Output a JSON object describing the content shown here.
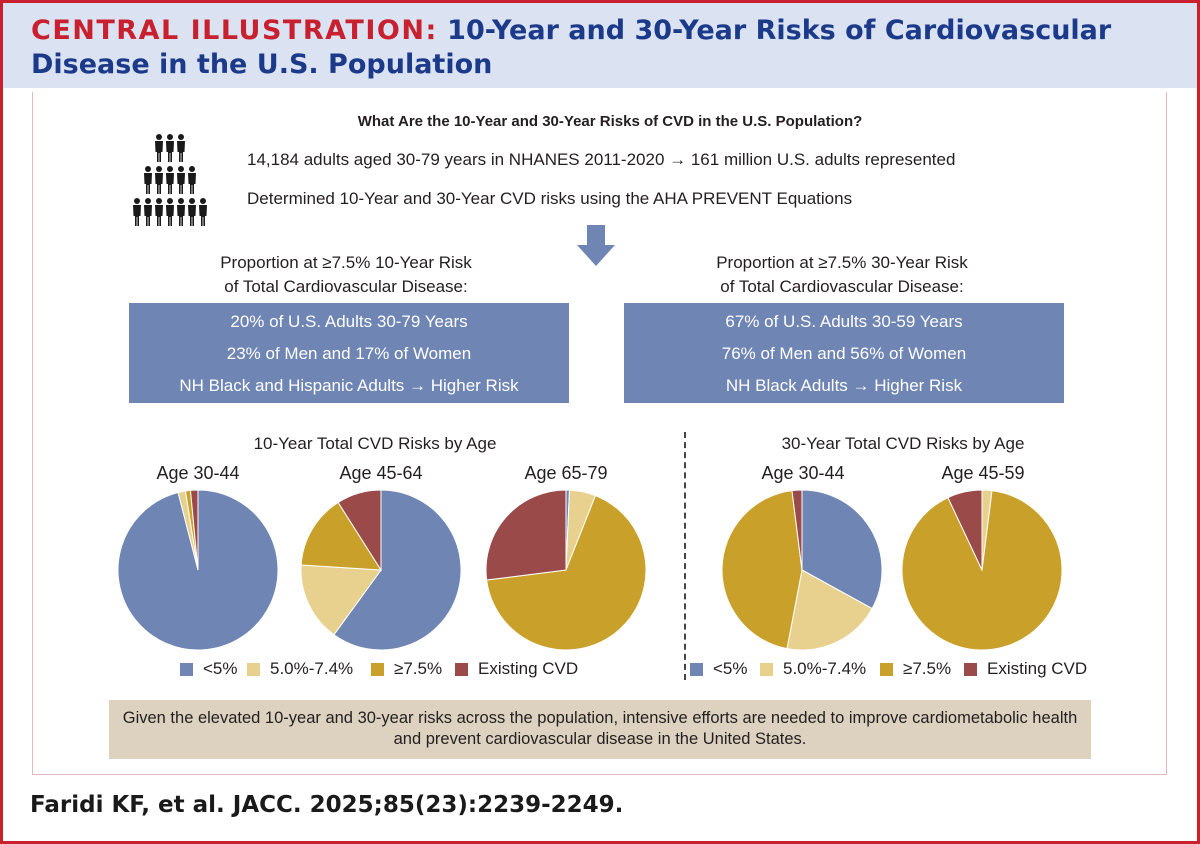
{
  "header": {
    "lead": "CENTRAL ILLUSTRATION:",
    "title": "10-Year and 30-Year Risks of Cardiovascular Disease in the U.S. Population"
  },
  "question": "What Are the 10-Year and 30-Year Risks of CVD in the U.S. Population?",
  "facts": [
    "14,184 adults aged 30-79 years in NHANES 2011-2020 → 161 million U.S. adults represented",
    "Determined 10-Year and 30-Year CVD risks using the AHA PREVENT Equations"
  ],
  "left": {
    "prop_title_line1": "Proportion at ≥7.5% 10-Year Risk",
    "prop_title_line2": "of Total Cardiovascular Disease:",
    "box": [
      "20% of U.S. Adults 30-79 Years",
      "23% of Men and 17% of Women",
      "NH Black and Hispanic Adults → Higher Risk"
    ]
  },
  "right": {
    "prop_title_line1": "Proportion at ≥7.5% 30-Year Risk",
    "prop_title_line2": "of Total Cardiovascular Disease:",
    "box": [
      "67% of U.S. Adults 30-59 Years",
      "76% of Men and 56% of Women",
      "NH Black Adults → Higher Risk"
    ]
  },
  "legend": [
    "<5%",
    "5.0%-7.4%",
    "≥7.5%",
    "Existing CVD"
  ],
  "colors": {
    "lt5": "#6f85b4",
    "mid": "#e8d08f",
    "ge75": "#c9a02a",
    "cvd": "#9b4a4a",
    "accent": "#c8202f",
    "title": "#1b3a8a",
    "box": "#6f85b4",
    "conclusion_bg": "#dcd2bf"
  },
  "chart_data": [
    {
      "type": "pie",
      "title": "10-Year Total CVD Risks by Age",
      "categories": [
        "<5%",
        "5.0%-7.4%",
        "≥7.5%",
        "Existing CVD"
      ],
      "pies": [
        {
          "name": "Age 30-44",
          "values": [
            96,
            1.5,
            1,
            1.5
          ]
        },
        {
          "name": "Age 45-64",
          "values": [
            60,
            16,
            15,
            9
          ]
        },
        {
          "name": "Age 65-79",
          "values": [
            0.7,
            5.3,
            67,
            27
          ]
        }
      ]
    },
    {
      "type": "pie",
      "title": "30-Year Total CVD Risks by Age",
      "categories": [
        "<5%",
        "5.0%-7.4%",
        "≥7.5%",
        "Existing CVD"
      ],
      "pies": [
        {
          "name": "Age 30-44",
          "values": [
            33,
            20,
            45,
            2
          ]
        },
        {
          "name": "Age 45-59",
          "values": [
            0,
            2,
            91,
            7
          ]
        }
      ]
    }
  ],
  "conclusion": "Given the elevated 10-year and 30-year risks across the population, intensive efforts are needed to improve cardiometabolic health and prevent cardiovascular disease in the United States.",
  "citation": "Faridi KF, et al. JACC. 2025;85(23):2239-2249."
}
